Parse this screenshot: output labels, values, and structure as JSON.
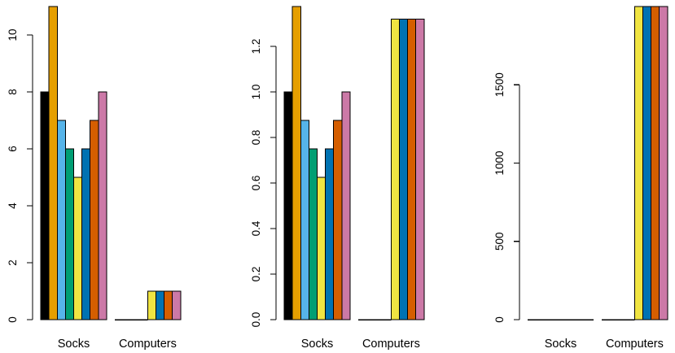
{
  "figure": {
    "background": "#ffffff",
    "bar_border_color": "#000000",
    "text_color": "#000000",
    "series_colors": [
      "#000000",
      "#E69F00",
      "#56B4E9",
      "#009E73",
      "#F0E442",
      "#0072B2",
      "#D55E00",
      "#CC79A7"
    ],
    "categories": [
      "Socks",
      "Computers"
    ]
  },
  "chart_data": [
    {
      "id": "counts",
      "type": "bar",
      "title": "",
      "xlabel": "",
      "ylabel": "",
      "grid": false,
      "legend": "none",
      "categories": [
        "Socks",
        "Computers"
      ],
      "values": {
        "Socks": [
          8,
          11,
          7,
          6,
          5,
          6,
          7,
          8
        ],
        "Computers": [
          0,
          0,
          0,
          0,
          1,
          1,
          1,
          1
        ]
      },
      "yticks": [
        0,
        2,
        4,
        6,
        8,
        10
      ],
      "ytick_labels": [
        "0",
        "2",
        "4",
        "6",
        "8",
        "10"
      ],
      "ylim": [
        0,
        11
      ]
    },
    {
      "id": "proportions",
      "type": "bar",
      "title": "",
      "xlabel": "",
      "ylabel": "",
      "grid": false,
      "legend": "none",
      "categories": [
        "Socks",
        "Computers"
      ],
      "values": {
        "Socks": [
          1.0,
          1.375,
          0.875,
          0.75,
          0.625,
          0.75,
          0.875,
          1.0
        ],
        "Computers": [
          0,
          0,
          0,
          0,
          1.32,
          1.32,
          1.32,
          1.32
        ]
      },
      "yticks": [
        0,
        0.2,
        0.4,
        0.6,
        0.8,
        1.0,
        1.2
      ],
      "ytick_labels": [
        "0.0",
        "0.2",
        "0.4",
        "0.6",
        "0.8",
        "1.0",
        "1.2"
      ],
      "ylim": [
        0,
        1.375
      ]
    },
    {
      "id": "totals",
      "type": "bar",
      "title": "",
      "xlabel": "",
      "ylabel": "",
      "grid": false,
      "legend": "none",
      "categories": [
        "Socks",
        "Computers"
      ],
      "values": {
        "Socks": [
          0,
          0,
          0,
          0,
          0,
          0,
          0,
          0
        ],
        "Computers": [
          0,
          0,
          0,
          0,
          2000,
          2000,
          2000,
          2000
        ]
      },
      "yticks": [
        0,
        500,
        1000,
        1500
      ],
      "ytick_labels": [
        "0",
        "500",
        "1000",
        "1500"
      ],
      "ylim": [
        0,
        2000
      ]
    }
  ]
}
